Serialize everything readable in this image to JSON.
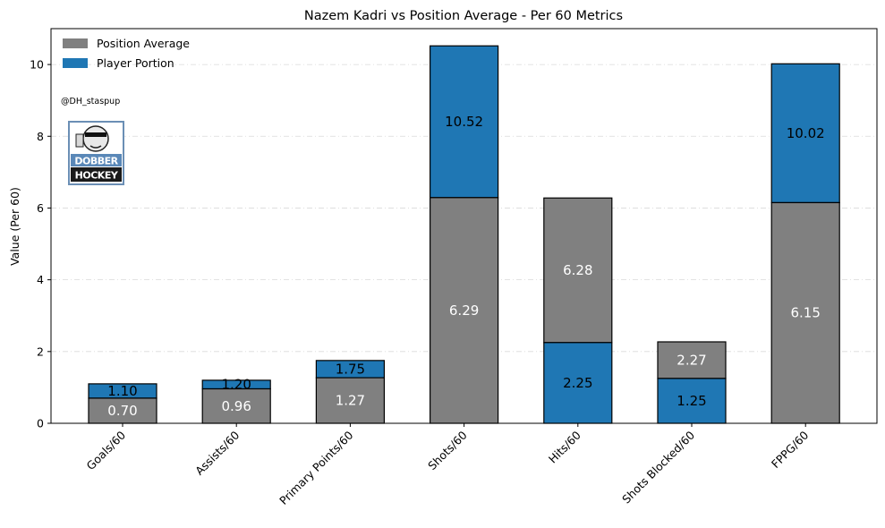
{
  "watermark": "@DH_staspup",
  "logo": {
    "line1": "DOBBER",
    "line2": "HOCKEY"
  },
  "chart_data": {
    "type": "bar",
    "stacked": true,
    "title": "Nazem Kadri vs Position Average - Per 60 Metrics",
    "xlabel": "",
    "ylabel": "Value (Per 60)",
    "ylim": [
      0,
      11
    ],
    "yticks": [
      "0",
      "2",
      "4",
      "6",
      "8",
      "10"
    ],
    "grid": "horizontal dashed",
    "legend_position": "top-left",
    "categories": [
      "Goals/60",
      "Assists/60",
      "Primary Points/60",
      "Shots/60",
      "Hits/60",
      "Shots Blocked/60",
      "FPPG/60"
    ],
    "series": [
      {
        "name": "Position Average",
        "color": "#808080"
      },
      {
        "name": "Player Portion",
        "color": "#1f77b4"
      }
    ],
    "player": [
      1.1,
      1.2,
      1.75,
      10.52,
      2.25,
      1.25,
      10.02
    ],
    "position_average": [
      0.7,
      0.96,
      1.27,
      6.29,
      6.28,
      2.27,
      6.15
    ],
    "player_labels": [
      "1.10",
      "1.20",
      "1.75",
      "10.52",
      "2.25",
      "1.25",
      "10.02"
    ],
    "average_labels": [
      "0.70",
      "0.96",
      "1.27",
      "6.29",
      "6.28",
      "2.27",
      "6.15"
    ]
  }
}
